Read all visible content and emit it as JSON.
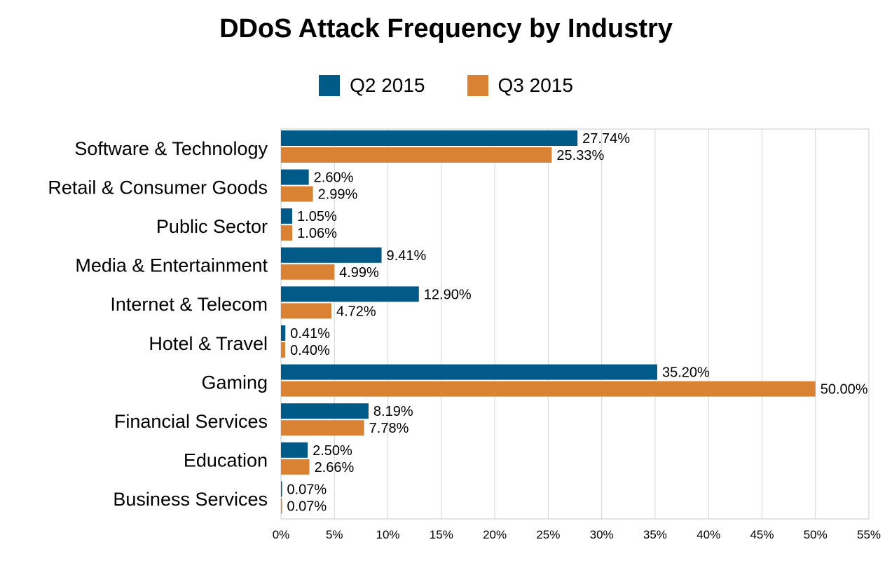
{
  "chart_data": {
    "type": "bar",
    "orientation": "horizontal",
    "title": "DDoS Attack Frequency by Industry",
    "xlabel": "",
    "ylabel": "",
    "xlim": [
      0,
      55
    ],
    "x_ticks": [
      "0%",
      "5%",
      "10%",
      "15%",
      "20%",
      "25%",
      "30%",
      "35%",
      "40%",
      "45%",
      "50%",
      "55%"
    ],
    "grid": "vertical",
    "legend_position": "top-center",
    "categories": [
      "Software & Technology",
      "Retail & Consumer Goods",
      "Public Sector",
      "Media & Entertainment",
      "Internet & Telecom",
      "Hotel & Travel",
      "Gaming",
      "Financial Services",
      "Education",
      "Business Services"
    ],
    "series": [
      {
        "name": "Q2 2015",
        "color": "#005a87",
        "values": [
          27.74,
          2.6,
          1.05,
          9.41,
          12.9,
          0.41,
          35.2,
          8.19,
          2.5,
          0.07
        ],
        "labels": [
          "27.74%",
          "2.60%",
          "1.05%",
          "9.41%",
          "12.90%",
          "0.41%",
          "35.20%",
          "8.19%",
          "2.50%",
          "0.07%"
        ]
      },
      {
        "name": "Q3 2015",
        "color": "#da8233",
        "values": [
          25.33,
          2.99,
          1.06,
          4.99,
          4.72,
          0.4,
          50.0,
          7.78,
          2.66,
          0.07
        ],
        "labels": [
          "25.33%",
          "2.99%",
          "1.06%",
          "4.99%",
          "4.72%",
          "0.40%",
          "50.00%",
          "7.78%",
          "2.66%",
          "0.07%"
        ]
      }
    ]
  }
}
